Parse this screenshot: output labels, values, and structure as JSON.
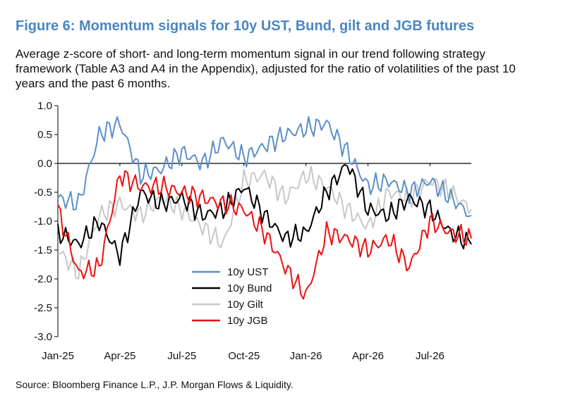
{
  "figure": {
    "title": "Figure 6: Momentum signals for 10y UST, Bund, gilt and JGB futures",
    "subtitle": "Average z-score of short- and long-term momentum signal in our trend following strategy framework (Table A3 and A4 in the Appendix), adjusted for the ratio of volatilities of the past 10 years and the past 6 months.",
    "source": "Source: Bloomberg Finance L.P., J.P. Morgan Flows & Liquidity."
  },
  "chart_data": {
    "type": "line",
    "title": "Figure 6: Momentum signals for 10y UST, Bund, gilt and JGB futures",
    "xlabel": "",
    "ylabel": "",
    "xlim": [
      "2025-01",
      "2026-09"
    ],
    "ylim": [
      -3.0,
      1.0
    ],
    "x_ticks": [
      "Jan-25",
      "Apr-25",
      "Jul-25",
      "Oct-25",
      "Jan-26",
      "Apr-26",
      "Jul-26"
    ],
    "y_ticks": [
      "1.0",
      "0.5",
      "0.0",
      "-0.5",
      "-1.0",
      "-1.5",
      "-2.0",
      "-2.5",
      "-3.0"
    ],
    "grid": false,
    "legend_position": "bottom-center",
    "x": [
      "2025-01",
      "2025-02",
      "2025-03",
      "2025-04",
      "2025-05",
      "2025-06",
      "2025-07",
      "2025-08",
      "2025-09",
      "2025-10",
      "2025-11",
      "2025-12",
      "2026-01",
      "2026-02",
      "2026-03",
      "2026-04",
      "2026-05",
      "2026-06",
      "2026-07",
      "2026-08",
      "2026-09"
    ],
    "series": [
      {
        "name": "10y UST",
        "color": "#5b8fc7",
        "values": [
          -0.6,
          -0.7,
          0.5,
          0.7,
          -0.2,
          -0.1,
          0.2,
          0.0,
          0.4,
          0.1,
          0.3,
          0.5,
          0.6,
          0.7,
          0.2,
          -0.4,
          -0.3,
          -0.5,
          -0.3,
          -0.6,
          -0.9
        ]
      },
      {
        "name": "10y Bund",
        "color": "#000000",
        "values": [
          -1.2,
          -1.4,
          -1.0,
          -1.6,
          -0.5,
          -0.7,
          -0.6,
          -0.9,
          -0.8,
          -0.4,
          -0.9,
          -1.3,
          -1.2,
          -0.5,
          0.0,
          -0.8,
          -0.9,
          -0.6,
          -0.8,
          -1.2,
          -1.4
        ]
      },
      {
        "name": "10y Gilt",
        "color": "#c8c8c8",
        "values": [
          -1.5,
          -1.9,
          -0.9,
          -0.7,
          -0.9,
          -0.6,
          -0.8,
          -1.1,
          -1.4,
          -0.3,
          -0.2,
          -0.6,
          -0.2,
          -0.4,
          -0.8,
          -1.1,
          -0.5,
          -0.6,
          -0.3,
          -0.5,
          -0.8
        ]
      },
      {
        "name": "10y JGB",
        "color": "#ee1111",
        "values": [
          -0.8,
          -1.9,
          -1.8,
          -0.2,
          -0.4,
          -0.4,
          -0.5,
          -0.6,
          -0.7,
          -0.8,
          -1.2,
          -1.8,
          -2.3,
          -1.2,
          -1.3,
          -1.5,
          -1.3,
          -1.8,
          -1.0,
          -1.2,
          -1.3
        ]
      }
    ]
  }
}
